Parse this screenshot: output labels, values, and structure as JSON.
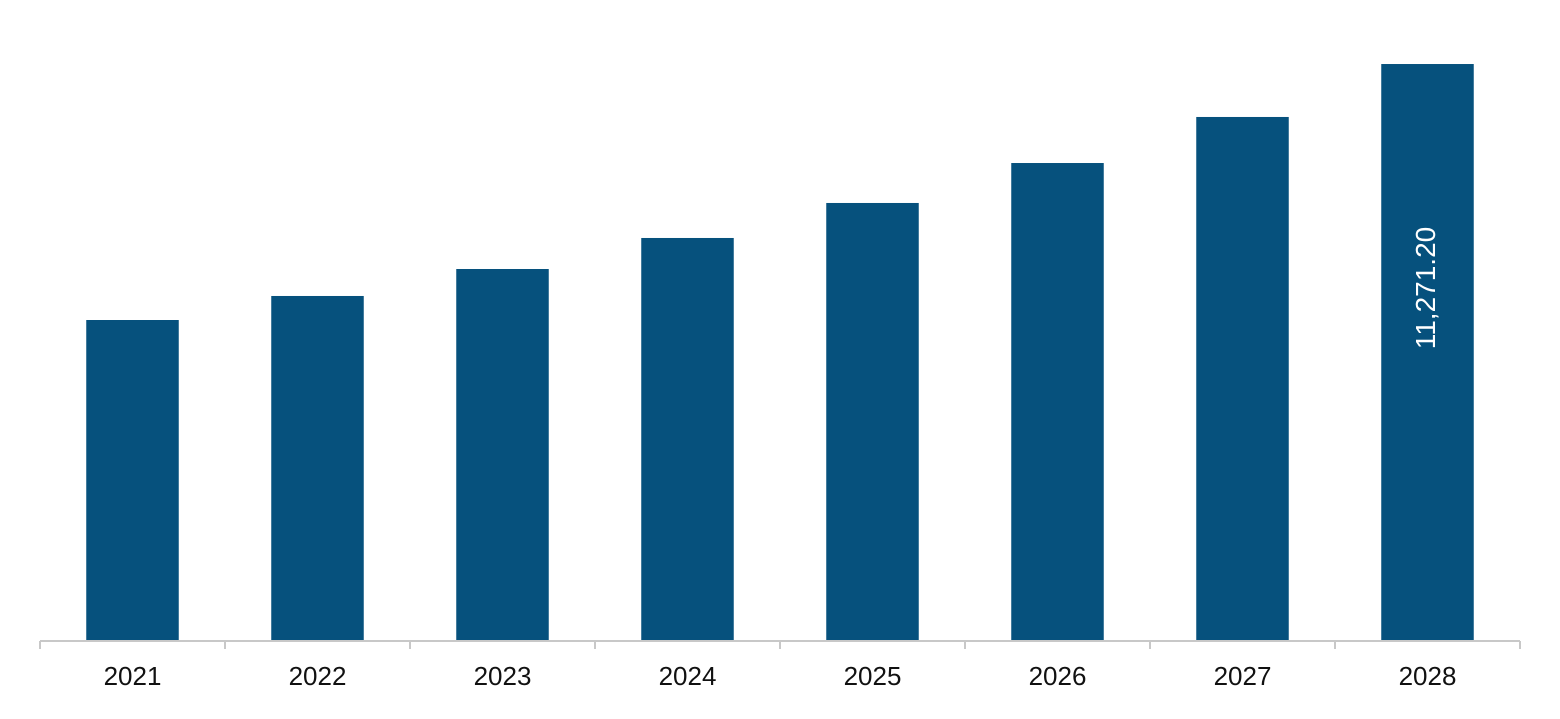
{
  "chart_data": {
    "type": "bar",
    "categories": [
      "2021",
      "2022",
      "2023",
      "2024",
      "2025",
      "2026",
      "2027",
      "2028"
    ],
    "values": [
      6262,
      6732,
      7260,
      7867,
      8552,
      9334,
      10235,
      11271.2
    ],
    "value_labels": [
      null,
      null,
      null,
      null,
      null,
      null,
      null,
      "11,271.20"
    ],
    "color": "#06517d",
    "ylim": [
      0,
      12524
    ]
  }
}
